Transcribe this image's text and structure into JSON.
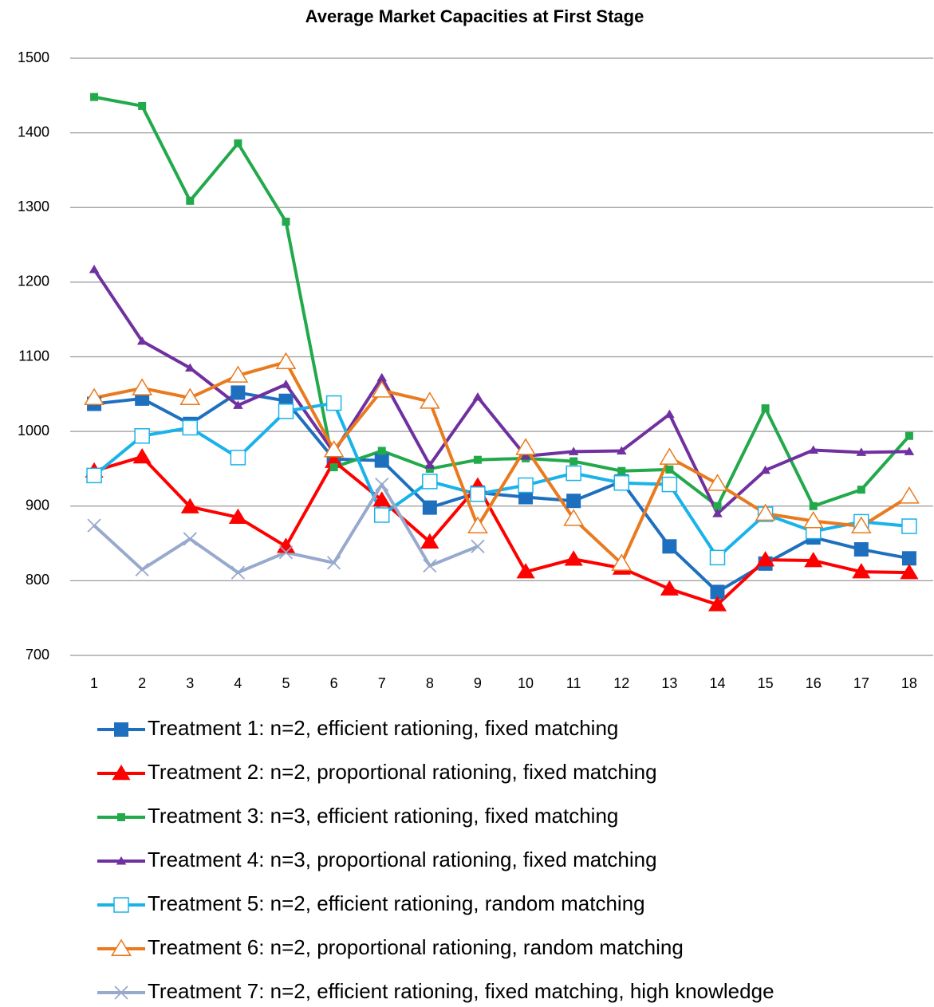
{
  "chart_data": {
    "type": "line",
    "title": "Average Market Capacities at First Stage",
    "categories": [
      "1",
      "2",
      "3",
      "4",
      "5",
      "6",
      "7",
      "8",
      "9",
      "10",
      "11",
      "12",
      "13",
      "14",
      "15",
      "16",
      "17",
      "18"
    ],
    "ylim": [
      700,
      1500
    ],
    "yticks": [
      700,
      800,
      900,
      1000,
      1100,
      1200,
      1300,
      1400,
      1500
    ],
    "grid": true,
    "series": [
      {
        "name": "Treatment 1: n=2, efficient rationing, fixed matching",
        "color": "#1f6fbf",
        "marker": "square",
        "values": [
          1037,
          1044,
          1010,
          1052,
          1041,
          963,
          961,
          898,
          918,
          912,
          907,
          933,
          846,
          785,
          823,
          858,
          842,
          830
        ]
      },
      {
        "name": "Treatment 2: n=2, proportional rationing, fixed matching",
        "color": "#ff0000",
        "marker": "triangle",
        "values": [
          947,
          966,
          899,
          885,
          846,
          960,
          908,
          852,
          927,
          812,
          829,
          817,
          789,
          768,
          828,
          827,
          812,
          811
        ]
      },
      {
        "name": "Treatment 3: n=3, efficient rationing, fixed matching",
        "color": "#22a94b",
        "marker": "small-square",
        "values": [
          1448,
          1436,
          1309,
          1386,
          1281,
          952,
          974,
          950,
          962,
          964,
          960,
          947,
          949,
          900,
          1031,
          900,
          922,
          994
        ]
      },
      {
        "name": "Treatment 4: n=3, proportional rationing, fixed matching",
        "color": "#7030a0",
        "marker": "small-triangle",
        "values": [
          1217,
          1121,
          1085,
          1035,
          1063,
          972,
          1072,
          955,
          1046,
          967,
          973,
          974,
          1023,
          890,
          948,
          975,
          972,
          973
        ]
      },
      {
        "name": "Treatment 5: n=2, efficient rationing, random matching",
        "color": "#1ab2ea",
        "marker": "open-square",
        "values": [
          941,
          994,
          1005,
          965,
          1027,
          1038,
          888,
          933,
          916,
          928,
          944,
          931,
          929,
          831,
          889,
          866,
          879,
          873
        ]
      },
      {
        "name": "Treatment 6: n=2, proportional rationing, random matching",
        "color": "#e97a1e",
        "marker": "open-triangle",
        "values": [
          1045,
          1058,
          1045,
          1075,
          1093,
          975,
          1055,
          1040,
          873,
          978,
          883,
          823,
          965,
          930,
          890,
          880,
          873,
          913
        ]
      },
      {
        "name": "Treatment 7: n=2, efficient rationing, fixed matching, high knowledge",
        "color": "#97a9cc",
        "marker": "x",
        "values": [
          874,
          815,
          856,
          811,
          838,
          824,
          929,
          820,
          846,
          null,
          null,
          null,
          null,
          null,
          null,
          null,
          null,
          null
        ]
      }
    ]
  }
}
